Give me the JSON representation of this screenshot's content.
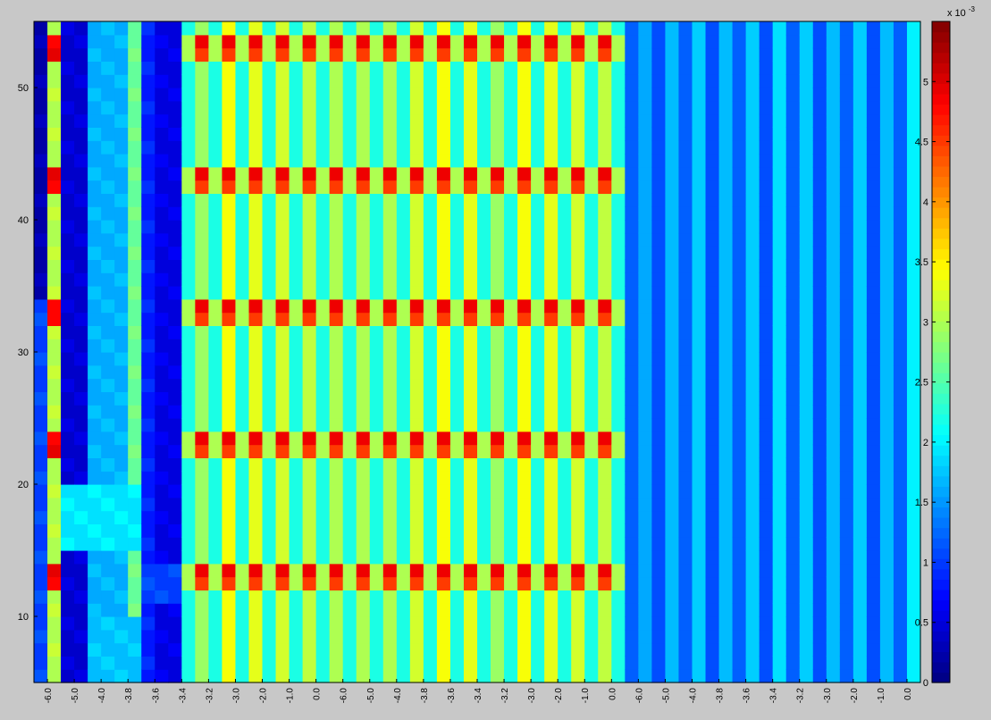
{
  "chart_data": {
    "type": "heatmap",
    "title": "",
    "xlabel": "",
    "ylabel": "",
    "x_tick_labels": [
      "-6.0",
      "-5.0",
      "-4.0",
      "-3.8",
      "-3.6",
      "-3.4",
      "-3.2",
      "-3.0",
      "-2.0",
      "-1.0",
      "0.0",
      "-6.0",
      "-5.0",
      "-4.0",
      "-3.8",
      "-3.6",
      "-3.4",
      "-3.2",
      "-3.0",
      "-2.0",
      "-1.0",
      "0.0",
      "-6.0",
      "-5.0",
      "-4.0",
      "-3.8",
      "-3.6",
      "-3.4",
      "-3.2",
      "-3.0",
      "-2.0",
      "-1.0",
      "0.0"
    ],
    "n_columns": 66,
    "y_range": [
      5,
      55
    ],
    "y_ticks": [
      10,
      20,
      30,
      40,
      50
    ],
    "color_range": [
      0,
      0.0055
    ],
    "colorbar": {
      "exponent_label": "x 10",
      "exponent_power": "-3",
      "ticks": [
        {
          "value": 0,
          "label": "0"
        },
        {
          "value": 0.5,
          "label": "0.5"
        },
        {
          "value": 1,
          "label": "1"
        },
        {
          "value": 1.5,
          "label": "1.5"
        },
        {
          "value": 2,
          "label": "2"
        },
        {
          "value": 2.5,
          "label": "2.5"
        },
        {
          "value": 3,
          "label": "3"
        },
        {
          "value": 3.5,
          "label": "3.5"
        },
        {
          "value": 4,
          "label": "4"
        },
        {
          "value": 4.5,
          "label": "4.5"
        },
        {
          "value": 5,
          "label": "5"
        }
      ]
    },
    "colormap": "jet",
    "grid": false,
    "legend": "colorbar-right",
    "regions": {
      "left_block_base": [
        0.2,
        3.0,
        0.4,
        0.4,
        1.6,
        1.6,
        1.6,
        2.6,
        0.8,
        0.5,
        0.5
      ],
      "middle_block_columns": [
        2.2,
        2.9,
        2.2,
        3.4,
        2.2,
        3.3,
        2.2,
        3.2,
        2.2,
        3.1,
        2.2,
        3.0,
        2.2,
        3.0,
        2.2,
        3.0,
        2.2,
        3.2,
        2.2,
        3.4,
        2.2,
        3.3
      ],
      "middle_block_hotspot_rows": [
        14,
        24,
        34,
        44,
        54
      ],
      "middle_block_hotspot_peak": 4.9,
      "right_block_columns": [
        1.2,
        1.6,
        1.1,
        1.7,
        1.2,
        1.8,
        1.1,
        1.7,
        1.2,
        1.8,
        1.1,
        1.9,
        1.2,
        1.8,
        1.1,
        1.7,
        1.2,
        1.8,
        1.1,
        1.7,
        1.2,
        2.0
      ]
    }
  }
}
